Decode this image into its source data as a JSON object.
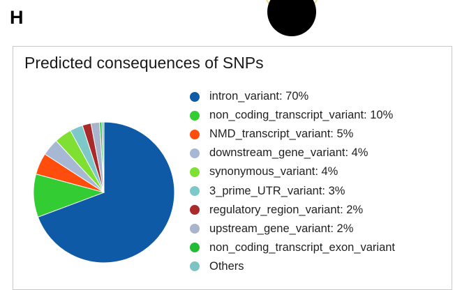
{
  "panel_label": "H",
  "chart_data": {
    "type": "pie",
    "title": "Predicted consequences of SNPs",
    "slices": [
      {
        "category": "intron_variant",
        "legend": "intron_variant: 70%",
        "value": 70,
        "color": "#0e5aa7"
      },
      {
        "category": "non_coding_transcript_variant",
        "legend": "non_coding_transcript_variant: 10%",
        "value": 10,
        "color": "#33cc33"
      },
      {
        "category": "NMD_transcript_variant",
        "legend": "NMD_transcript_variant: 5%",
        "value": 5,
        "color": "#ff4d0d"
      },
      {
        "category": "downstream_gene_variant",
        "legend": "downstream_gene_variant: 4%",
        "value": 4,
        "color": "#a6b8d4"
      },
      {
        "category": "synonymous_variant",
        "legend": "synonymous_variant: 4%",
        "value": 4,
        "color": "#7fe033"
      },
      {
        "category": "3_prime_UTR_variant",
        "legend": "3_prime_UTR_variant: 3%",
        "value": 3,
        "color": "#7dc8c8"
      },
      {
        "category": "regulatory_region_variant",
        "legend": "regulatory_region_variant: 2%",
        "value": 2,
        "color": "#a82a2a"
      },
      {
        "category": "upstream_gene_variant",
        "legend": "upstream_gene_variant: 2%",
        "value": 2,
        "color": "#aab4cc"
      },
      {
        "category": "non_coding_transcript_exon_variant",
        "legend": "non_coding_transcript_exon_variant",
        "value": 0.5,
        "color": "#22bb33"
      },
      {
        "category": "Others",
        "legend": "Others",
        "value": 0.5,
        "color": "#7fc4c4"
      }
    ],
    "legend_position": "right"
  }
}
